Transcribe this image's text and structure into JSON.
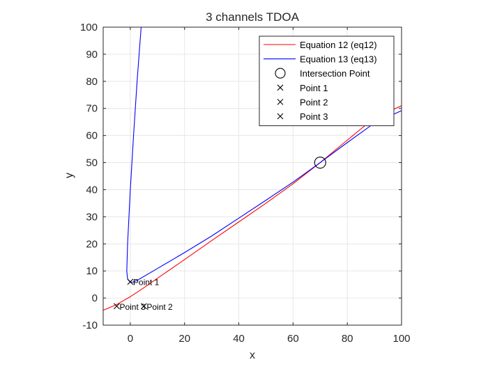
{
  "chart_data": {
    "type": "line",
    "title": "3 channels TDOA",
    "xlabel": "x",
    "ylabel": "y",
    "xlim": [
      -10,
      100
    ],
    "ylim": [
      -10,
      100
    ],
    "xticks": [
      0,
      20,
      40,
      60,
      80,
      100
    ],
    "yticks": [
      -10,
      0,
      10,
      20,
      30,
      40,
      50,
      60,
      70,
      80,
      90,
      100
    ],
    "grid": true,
    "legend_position": "top-right",
    "series": [
      {
        "name": "Equation 12 (eq12)",
        "color": "#ff0000",
        "kind": "line",
        "points": [
          [
            -10,
            -4.5
          ],
          [
            -5,
            -2.4
          ],
          [
            0,
            0.5
          ],
          [
            5,
            3.8
          ],
          [
            10,
            7.3
          ],
          [
            20,
            14.2
          ],
          [
            30,
            21.2
          ],
          [
            40,
            28.1
          ],
          [
            50,
            35.0
          ],
          [
            60,
            42.2
          ],
          [
            70,
            50.0
          ],
          [
            80,
            58.3
          ],
          [
            90,
            66.5
          ],
          [
            100,
            71
          ]
        ]
      },
      {
        "name": "Equation 13 (eq13)",
        "color": "#0000ff",
        "kind": "line",
        "points": [
          [
            4,
            100
          ],
          [
            2.5,
            80
          ],
          [
            1.2,
            60
          ],
          [
            0,
            40
          ],
          [
            -1,
            20
          ],
          [
            -1.3,
            10
          ],
          [
            -1,
            7
          ],
          [
            0,
            5.8
          ],
          [
            1,
            5.9
          ],
          [
            3,
            6.8
          ],
          [
            10,
            10.9
          ],
          [
            20,
            16.8
          ],
          [
            30,
            22.9
          ],
          [
            40,
            29.5
          ],
          [
            50,
            36.1
          ],
          [
            60,
            42.8
          ],
          [
            70,
            50.0
          ],
          [
            80,
            57.4
          ],
          [
            90,
            64.6
          ],
          [
            100,
            69.2
          ]
        ]
      },
      {
        "name": "Intersection Point",
        "color": "#000000",
        "kind": "circle",
        "points": [
          [
            70,
            50
          ]
        ]
      },
      {
        "name": "Point 1",
        "color": "#000000",
        "kind": "x",
        "points": [
          [
            0,
            6
          ]
        ]
      },
      {
        "name": "Point 2",
        "color": "#000000",
        "kind": "x",
        "points": [
          [
            5,
            -3
          ]
        ]
      },
      {
        "name": "Point 3",
        "color": "#000000",
        "kind": "x",
        "points": [
          [
            -5,
            -3
          ]
        ]
      }
    ],
    "annotations": [
      {
        "text": "Point 1",
        "x": 0,
        "y": 6
      },
      {
        "text": "Point 2",
        "x": 5,
        "y": -3
      },
      {
        "text": "Point 3",
        "x": -5,
        "y": -3
      }
    ]
  }
}
